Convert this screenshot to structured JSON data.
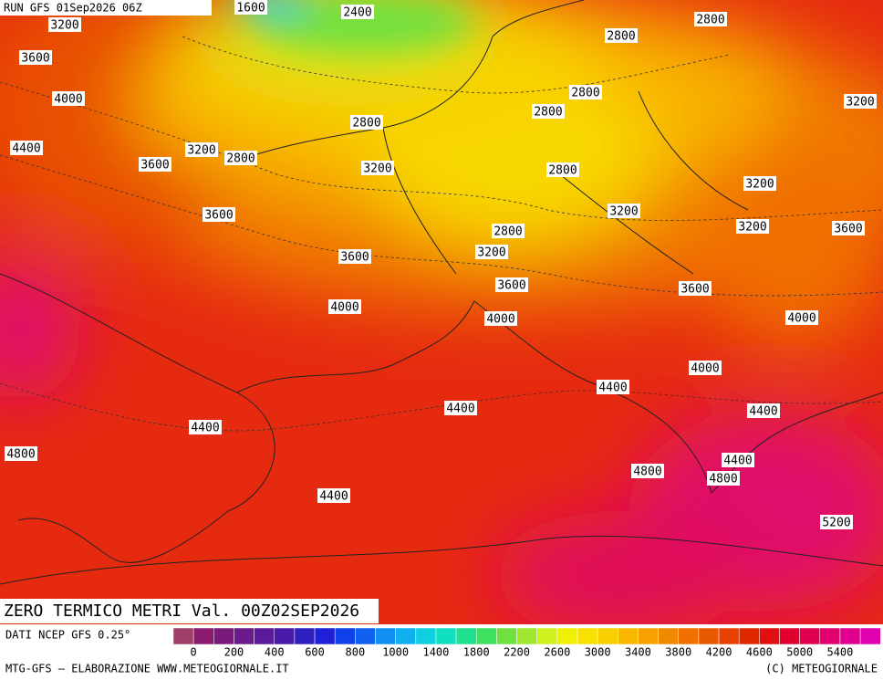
{
  "header": {
    "run": "RUN GFS 01Sep2026 06Z"
  },
  "title": "ZERO TERMICO METRI Val. 00Z02SEP2026",
  "source": "DATI NCEP GFS 0.25°",
  "credit_left": "MTG-GFS — ELABORAZIONE WWW.METEOGIORNALE.IT",
  "credit_right": "(C) METEOGIORNALE",
  "legend": {
    "labels": [
      "0",
      "200",
      "400",
      "600",
      "800",
      "1000",
      "1400",
      "1800",
      "2200",
      "2600",
      "3000",
      "3400",
      "3800",
      "4200",
      "4600",
      "5000",
      "5400"
    ],
    "colors": [
      "#a0406a",
      "#8c1a6e",
      "#7a1a7a",
      "#6a1a8a",
      "#5a1a9a",
      "#4a1aaa",
      "#3020c0",
      "#2020d8",
      "#1040e8",
      "#1060f0",
      "#1090f0",
      "#10b0f0",
      "#10d0e0",
      "#10e0c0",
      "#20e090",
      "#40e060",
      "#70e040",
      "#a0e830",
      "#d0f020",
      "#f0f000",
      "#f8e000",
      "#f8d000",
      "#f8b800",
      "#f8a000",
      "#f08800",
      "#f07000",
      "#e85800",
      "#e84000",
      "#e02800",
      "#e01010",
      "#e00030",
      "#e00050",
      "#e00070",
      "#e00090",
      "#e000b0"
    ]
  },
  "contour_labels": [
    "1600",
    "2400",
    "3200",
    "2800",
    "2800",
    "3600",
    "2800",
    "4000",
    "2800",
    "3200",
    "2800",
    "4400",
    "3200",
    "2800",
    "3600",
    "3200",
    "2800",
    "3200",
    "3600",
    "3200",
    "2800",
    "3200",
    "3600",
    "3200",
    "3600",
    "3600",
    "3600",
    "4000",
    "4000",
    "4000",
    "4000",
    "4400",
    "4400",
    "4400",
    "4400",
    "4800",
    "4400",
    "4800",
    "4800",
    "4400",
    "5200"
  ]
}
